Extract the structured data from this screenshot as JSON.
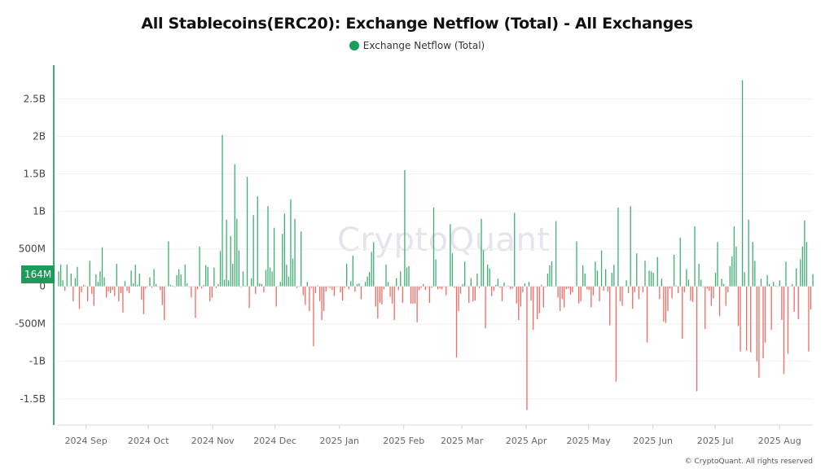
{
  "chart_data": {
    "type": "bar",
    "title": "All Stablecoins(ERC20): Exchange Netflow (Total) - All Exchanges",
    "legend": [
      {
        "name": "Exchange Netflow (Total)",
        "color": "#1a9c5b"
      }
    ],
    "legend_placement": "top-center",
    "value_unit": "USD millions, daily",
    "xlim": [
      "2024-08-18",
      "2025-08-17"
    ],
    "ylim": [
      -1850,
      2950
    ],
    "yticks": [
      {
        "value": 2500,
        "label": "2.5B"
      },
      {
        "value": 2000,
        "label": "2B"
      },
      {
        "value": 1500,
        "label": "1.5B"
      },
      {
        "value": 1000,
        "label": "1B"
      },
      {
        "value": 500,
        "label": "500M"
      },
      {
        "value": 0,
        "label": "0"
      },
      {
        "value": -500,
        "label": "-500M"
      },
      {
        "value": -1000,
        "label": "-1B"
      },
      {
        "value": -1500,
        "label": "-1.5B"
      }
    ],
    "xticks": [
      {
        "date": "2024-09-01",
        "label": "2024 Sep"
      },
      {
        "date": "2024-10-01",
        "label": "2024 Oct"
      },
      {
        "date": "2024-11-01",
        "label": "2024 Nov"
      },
      {
        "date": "2024-12-01",
        "label": "2024 Dec"
      },
      {
        "date": "2025-01-01",
        "label": "2025 Jan"
      },
      {
        "date": "2025-02-01",
        "label": "2025 Feb"
      },
      {
        "date": "2025-03-01",
        "label": "2025 Mar"
      },
      {
        "date": "2025-04-01",
        "label": "2025 Apr"
      },
      {
        "date": "2025-05-01",
        "label": "2025 May"
      },
      {
        "date": "2025-06-01",
        "label": "2025 Jun"
      },
      {
        "date": "2025-07-01",
        "label": "2025 Jul"
      },
      {
        "date": "2025-08-01",
        "label": "2025 Aug"
      }
    ],
    "grid": true,
    "positive_color": "#3fae74",
    "negative_color": "#f26a62",
    "last_value_label": "164M",
    "last_value": 164,
    "values": [
      200,
      290,
      80,
      -60,
      290,
      0,
      170,
      -200,
      110,
      260,
      -300,
      -80,
      20,
      10,
      -200,
      340,
      -100,
      -260,
      160,
      60,
      200,
      520,
      120,
      -150,
      -70,
      -90,
      -50,
      -130,
      300,
      -200,
      -90,
      -350,
      70,
      -60,
      -90,
      210,
      40,
      290,
      20,
      170,
      -180,
      -370,
      -30,
      0,
      120,
      -20,
      230,
      30,
      0,
      -50,
      -250,
      -450,
      0,
      600,
      20,
      10,
      -10,
      150,
      230,
      160,
      0,
      290,
      40,
      -10,
      -150,
      0,
      -420,
      -40,
      530,
      -30,
      20,
      280,
      260,
      -200,
      -150,
      250,
      -20,
      30,
      470,
      2020,
      90,
      890,
      80,
      670,
      300,
      1630,
      900,
      480,
      -10,
      200,
      10,
      1460,
      -290,
      110,
      950,
      -100,
      1200,
      40,
      30,
      -80,
      220,
      1070,
      250,
      200,
      780,
      -270,
      0,
      60,
      700,
      970,
      290,
      130,
      1160,
      370,
      900,
      -20,
      0,
      730,
      -120,
      -250,
      60,
      -330,
      -20,
      -800,
      -90,
      10,
      -200,
      -450,
      -330,
      -70,
      -10,
      -20,
      -50,
      -130,
      -10,
      0,
      -80,
      -190,
      -20,
      300,
      -40,
      70,
      410,
      -70,
      30,
      40,
      -170,
      0,
      60,
      130,
      190,
      460,
      590,
      -270,
      -430,
      -220,
      -240,
      -40,
      290,
      60,
      -140,
      -230,
      -450,
      110,
      -50,
      200,
      -220,
      1550,
      250,
      270,
      -230,
      -230,
      -230,
      -480,
      -50,
      -20,
      30,
      -50,
      -10,
      -220,
      -20,
      1050,
      360,
      -40,
      -30,
      -40,
      -10,
      -120,
      0,
      830,
      440,
      -20,
      -950,
      -330,
      -100,
      30,
      330,
      0,
      -220,
      110,
      -200,
      -190,
      170,
      -20,
      900,
      480,
      -560,
      290,
      240,
      -130,
      -60,
      20,
      100,
      -20,
      -200,
      50,
      -10,
      10,
      -40,
      -30,
      980,
      -230,
      -450,
      -270,
      -80,
      40,
      -1650,
      60,
      -190,
      -580,
      -10,
      -440,
      -360,
      20,
      -280,
      -10,
      170,
      280,
      330,
      0,
      870,
      -150,
      -330,
      -170,
      -280,
      -40,
      -30,
      -110,
      -80,
      0,
      600,
      -230,
      -200,
      280,
      170,
      -40,
      -50,
      -280,
      -120,
      330,
      210,
      -200,
      480,
      -60,
      230,
      -70,
      -520,
      180,
      290,
      -1270,
      1050,
      -200,
      -260,
      0,
      80,
      -90,
      1070,
      -300,
      -80,
      440,
      -170,
      0,
      -80,
      340,
      -750,
      210,
      200,
      180,
      0,
      390,
      -170,
      100,
      -470,
      -490,
      -330,
      -30,
      -160,
      420,
      10,
      -90,
      650,
      -700,
      -80,
      230,
      90,
      -190,
      -210,
      800,
      -1400,
      300,
      90,
      -10,
      -570,
      -30,
      -60,
      -260,
      -160,
      180,
      590,
      -400,
      100,
      30,
      -260,
      -80,
      270,
      400,
      800,
      530,
      -530,
      -870,
      2750,
      190,
      -860,
      890,
      -880,
      590,
      340,
      -1000,
      -1220,
      100,
      -960,
      -750,
      150,
      30,
      -580,
      60,
      10,
      0,
      80,
      -450,
      -1170,
      330,
      -900,
      0,
      30,
      -340,
      240,
      -440,
      360,
      530,
      880,
      590,
      -870,
      -310,
      164
    ]
  },
  "watermark": "CryptoQuant",
  "copyright": "© CryptoQuant. All rights reserved"
}
